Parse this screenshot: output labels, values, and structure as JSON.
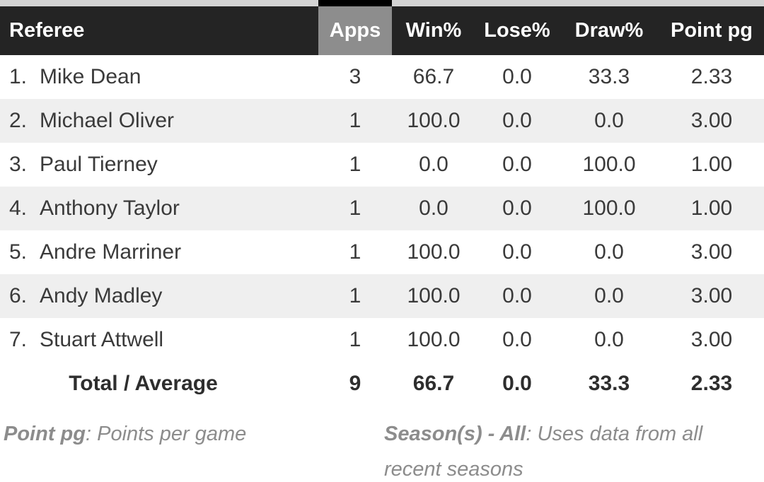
{
  "colors": {
    "header_bg": "#242424",
    "header_text": "#ffffff",
    "sorted_column_bg": "#8d8d8d",
    "sorted_column_notch": "#000000",
    "top_strip": "#d3d3d3",
    "row_alt_bg": "#efefef",
    "row_text": "#3a3a3a",
    "footnote_text": "#8c8c8c"
  },
  "table": {
    "header": {
      "referee": "Referee",
      "apps": "Apps",
      "win": "Win%",
      "lose": "Lose%",
      "draw": "Draw%",
      "ppg": "Point pg"
    },
    "sorted_column": "apps",
    "rows": [
      {
        "rank": "1.",
        "referee": "Mike Dean",
        "apps": "3",
        "win": "66.7",
        "lose": "0.0",
        "draw": "33.3",
        "ppg": "2.33"
      },
      {
        "rank": "2.",
        "referee": "Michael Oliver",
        "apps": "1",
        "win": "100.0",
        "lose": "0.0",
        "draw": "0.0",
        "ppg": "3.00"
      },
      {
        "rank": "3.",
        "referee": "Paul Tierney",
        "apps": "1",
        "win": "0.0",
        "lose": "0.0",
        "draw": "100.0",
        "ppg": "1.00"
      },
      {
        "rank": "4.",
        "referee": "Anthony Taylor",
        "apps": "1",
        "win": "0.0",
        "lose": "0.0",
        "draw": "100.0",
        "ppg": "1.00"
      },
      {
        "rank": "5.",
        "referee": "Andre Marriner",
        "apps": "1",
        "win": "100.0",
        "lose": "0.0",
        "draw": "0.0",
        "ppg": "3.00"
      },
      {
        "rank": "6.",
        "referee": "Andy Madley",
        "apps": "1",
        "win": "100.0",
        "lose": "0.0",
        "draw": "0.0",
        "ppg": "3.00"
      },
      {
        "rank": "7.",
        "referee": "Stuart Attwell",
        "apps": "1",
        "win": "100.0",
        "lose": "0.0",
        "draw": "0.0",
        "ppg": "3.00"
      }
    ],
    "total": {
      "label": "Total / Average",
      "apps": "9",
      "win": "66.7",
      "lose": "0.0",
      "draw": "33.3",
      "ppg": "2.33"
    }
  },
  "footnotes": {
    "point_pg": {
      "term": "Point pg",
      "definition": ": Points per game"
    },
    "seasons": {
      "term": "Season(s) - All",
      "definition": ": Uses data from all recent seasons"
    }
  }
}
